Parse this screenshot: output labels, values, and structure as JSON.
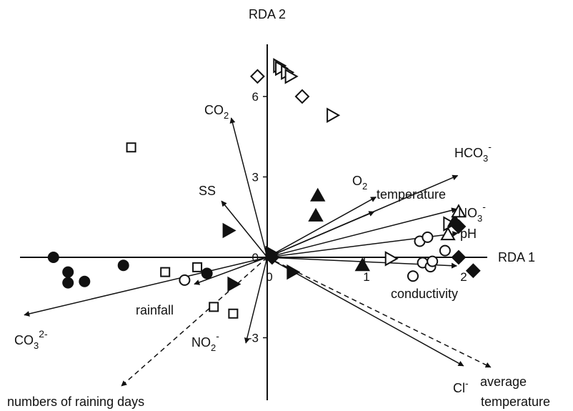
{
  "chart_data": {
    "type": "scatter",
    "subtype": "RDA biplot",
    "x_axis_label": "RDA 1",
    "y_axis_label": "RDA 2",
    "x_ticks": [
      {
        "value": 0,
        "label": "0"
      },
      {
        "value": 1,
        "label": "1"
      },
      {
        "value": 2,
        "label": "2"
      }
    ],
    "y_ticks": [
      {
        "value": -3,
        "label": "-3"
      },
      {
        "value": 0,
        "label": "0"
      },
      {
        "value": 3,
        "label": "3"
      },
      {
        "value": 6,
        "label": "6"
      }
    ],
    "xlim": [
      -2.6,
      2.3
    ],
    "ylim": [
      -5.8,
      7.7
    ],
    "grid": false,
    "colors": {
      "ink": "#111111",
      "background": "#ffffff"
    },
    "vectors": [
      {
        "id": "co2",
        "base": "CO",
        "sub": "2",
        "sup": "",
        "x": -0.37,
        "y": 5.2,
        "style": "solid"
      },
      {
        "id": "ss",
        "base": "SS",
        "sub": "",
        "sup": "",
        "x": -0.47,
        "y": 2.1,
        "style": "solid"
      },
      {
        "id": "o2",
        "base": "O",
        "sub": "2",
        "sup": "",
        "x": 1.12,
        "y": 2.25,
        "style": "solid"
      },
      {
        "id": "temperature",
        "base": "temperature",
        "sub": "",
        "sup": "",
        "x": 1.1,
        "y": 1.7,
        "style": "solid"
      },
      {
        "id": "hco3",
        "base": "HCO",
        "sub": "3",
        "sup": "-",
        "x": 1.96,
        "y": 3.05,
        "style": "solid"
      },
      {
        "id": "no3",
        "base": "NO",
        "sub": "3",
        "sup": "-",
        "x": 1.95,
        "y": 1.8,
        "style": "solid"
      },
      {
        "id": "ph",
        "base": "pH",
        "sub": "",
        "sup": "",
        "x": 1.96,
        "y": 0.9,
        "style": "solid"
      },
      {
        "id": "conductivity",
        "base": "conductivity",
        "sub": "",
        "sup": "",
        "x": 1.95,
        "y": -0.32,
        "style": "solid"
      },
      {
        "id": "cl",
        "base": "Cl",
        "sub": "",
        "sup": "-",
        "x": 2.02,
        "y": -4.05,
        "style": "solid"
      },
      {
        "id": "average-temperature",
        "base": "average temperature",
        "sub": "",
        "sup": "",
        "x": 2.3,
        "y": -4.1,
        "style": "dashed"
      },
      {
        "id": "co3",
        "base": "CO",
        "sub": "3",
        "sup": "2-",
        "x": -2.5,
        "y": -2.15,
        "style": "solid"
      },
      {
        "id": "rainfall",
        "base": "rainfall",
        "sub": "",
        "sup": "",
        "x": -0.75,
        "y": -1.0,
        "style": "solid"
      },
      {
        "id": "no2",
        "base": "NO",
        "sub": "2",
        "sup": "-",
        "x": -0.22,
        "y": -3.2,
        "style": "solid"
      },
      {
        "id": "raining-days",
        "base": "numbers of raining days",
        "sub": "",
        "sup": "",
        "x": -1.5,
        "y": -4.8,
        "style": "dashed"
      }
    ],
    "series": [
      {
        "marker": "circle-filled",
        "points": [
          [
            -2.2,
            0.0
          ],
          [
            -2.05,
            -0.55
          ],
          [
            -2.05,
            -0.95
          ],
          [
            -1.88,
            -0.9
          ],
          [
            -1.48,
            -0.3
          ],
          [
            -0.62,
            -0.6
          ]
        ]
      },
      {
        "marker": "square-open",
        "points": [
          [
            -1.4,
            4.1
          ],
          [
            -1.05,
            -0.55
          ],
          [
            -0.72,
            -0.37
          ],
          [
            -0.55,
            -1.85
          ],
          [
            -0.35,
            -2.1
          ]
        ]
      },
      {
        "marker": "circle-open",
        "points": [
          [
            -0.85,
            -0.85
          ],
          [
            1.5,
            -0.7
          ],
          [
            1.57,
            0.6
          ],
          [
            1.6,
            -0.2
          ],
          [
            1.65,
            0.75
          ],
          [
            1.68,
            -0.35
          ],
          [
            1.7,
            -0.15
          ],
          [
            1.83,
            0.25
          ]
        ]
      },
      {
        "marker": "triangle-right-filled",
        "points": [
          [
            -0.4,
            1.0
          ],
          [
            -0.35,
            -1.0
          ],
          [
            0.04,
            0.15
          ],
          [
            0.26,
            -0.55
          ]
        ]
      },
      {
        "marker": "triangle-right-open",
        "points": [
          [
            0.12,
            7.15
          ],
          [
            0.14,
            7.05
          ],
          [
            0.2,
            6.9
          ],
          [
            0.24,
            6.75
          ],
          [
            0.67,
            5.3
          ],
          [
            1.27,
            -0.05
          ],
          [
            1.87,
            1.25
          ]
        ]
      },
      {
        "marker": "diamond-open",
        "points": [
          [
            -0.1,
            6.75
          ],
          [
            0.36,
            6.0
          ]
        ]
      },
      {
        "marker": "diamond-filled",
        "points": [
          [
            0.05,
            0.0
          ],
          [
            1.97,
            1.15
          ],
          [
            1.97,
            0.0
          ],
          [
            2.12,
            -0.5
          ]
        ]
      },
      {
        "marker": "triangle-up-filled",
        "points": [
          [
            0.52,
            2.3
          ],
          [
            0.5,
            1.55
          ],
          [
            0.98,
            -0.3
          ],
          [
            1.93,
            1.35
          ]
        ]
      },
      {
        "marker": "triangle-up-open",
        "points": [
          [
            1.86,
            0.85
          ],
          [
            1.97,
            1.7
          ]
        ]
      }
    ]
  }
}
